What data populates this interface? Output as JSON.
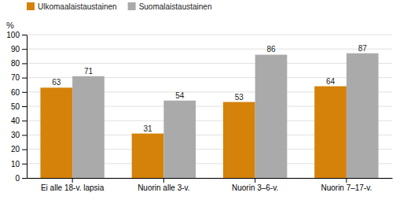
{
  "chart_data": {
    "type": "bar",
    "ylabel": "%",
    "categories": [
      "Ei alle 18-v. lapsia",
      "Nuorin alle 3-v.",
      "Nuorin 3–6-v.",
      "Nuorin 7–17-v."
    ],
    "series": [
      {
        "name": "Ulkomaalaistaustainen",
        "color": "#D4820A",
        "values": [
          63,
          31,
          53,
          64
        ]
      },
      {
        "name": "Suomalaistaustainen",
        "color": "#AAAAAA",
        "values": [
          71,
          54,
          86,
          87
        ]
      }
    ],
    "ylim": [
      0,
      100
    ],
    "yticks": [
      0,
      10,
      20,
      30,
      40,
      50,
      60,
      70,
      80,
      90,
      100
    ],
    "grid": true,
    "legend": "top-left",
    "data_labels": true
  }
}
